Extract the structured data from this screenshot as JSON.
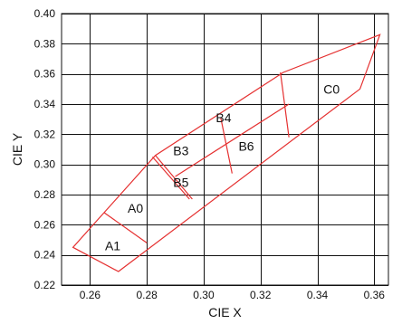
{
  "chart_data": {
    "type": "scatter",
    "title": "",
    "xlabel": "CIE X",
    "ylabel": "CIE Y",
    "xlim": [
      0.25,
      0.365
    ],
    "ylim": [
      0.22,
      0.4
    ],
    "x_ticks": [
      0.26,
      0.28,
      0.3,
      0.32,
      0.34,
      0.36
    ],
    "y_ticks": [
      0.22,
      0.24,
      0.26,
      0.28,
      0.3,
      0.32,
      0.34,
      0.36,
      0.38,
      0.4
    ],
    "x_tick_labels": [
      "0.26",
      "0.28",
      "0.30",
      "0.32",
      "0.34",
      "0.36"
    ],
    "y_tick_labels": [
      "0.22",
      "0.24",
      "0.26",
      "0.28",
      "0.30",
      "0.32",
      "0.34",
      "0.36",
      "0.38",
      "0.40"
    ],
    "grid": true,
    "line_color": "#e53030",
    "grid_color": "#111111",
    "outline": [
      [
        0.254,
        0.245
      ],
      [
        0.27,
        0.229
      ],
      [
        0.355,
        0.35
      ],
      [
        0.362,
        0.386
      ],
      [
        0.328,
        0.361
      ],
      [
        0.283,
        0.306
      ]
    ],
    "dividers": [
      [
        [
          0.265,
          0.268
        ],
        [
          0.28,
          0.248
        ]
      ],
      [
        [
          0.283,
          0.306
        ],
        [
          0.296,
          0.277
        ]
      ],
      [
        [
          0.29,
          0.292
        ],
        [
          0.33,
          0.34
        ]
      ],
      [
        [
          0.295,
          0.277
        ],
        [
          0.282,
          0.305
        ]
      ],
      [
        [
          0.306,
          0.331
        ],
        [
          0.31,
          0.294
        ]
      ],
      [
        [
          0.327,
          0.361
        ],
        [
          0.33,
          0.318
        ]
      ]
    ],
    "regions": [
      {
        "name": "A0",
        "x": 0.276,
        "y": 0.271
      },
      {
        "name": "A1",
        "x": 0.268,
        "y": 0.246
      },
      {
        "name": "B3",
        "x": 0.292,
        "y": 0.309
      },
      {
        "name": "B4",
        "x": 0.307,
        "y": 0.331
      },
      {
        "name": "B5",
        "x": 0.292,
        "y": 0.288
      },
      {
        "name": "B6",
        "x": 0.315,
        "y": 0.312
      },
      {
        "name": "C0",
        "x": 0.345,
        "y": 0.35
      }
    ]
  }
}
